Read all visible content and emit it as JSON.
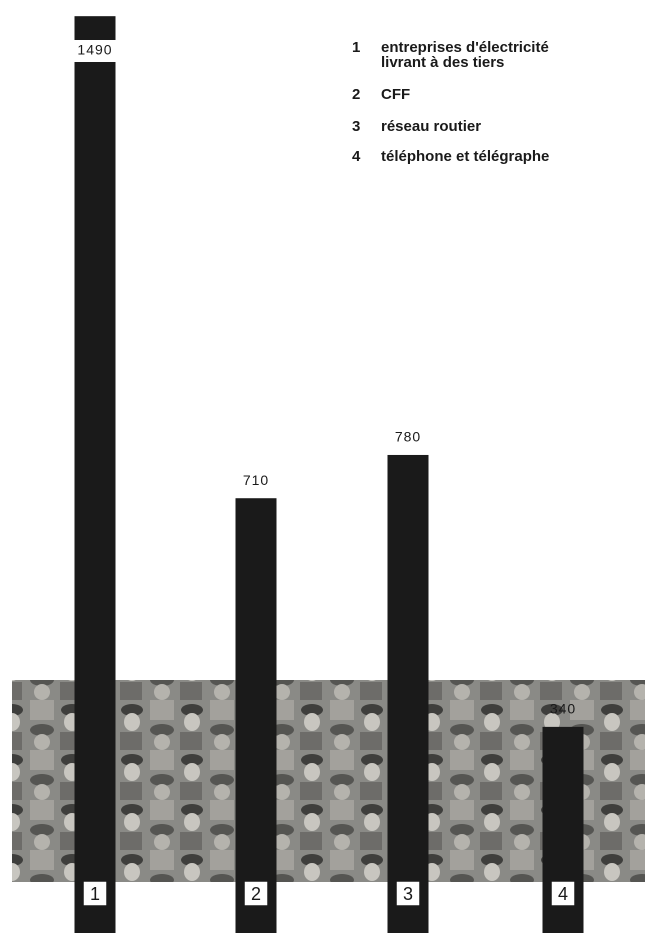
{
  "chart_data": {
    "type": "bar",
    "categories": [
      "1",
      "2",
      "3",
      "4"
    ],
    "descriptions": [
      "entreprises d'électricité livrant à des tiers",
      "CFF",
      "réseau routier",
      "téléphone et télégraphe"
    ],
    "values": [
      1490,
      710,
      780,
      340
    ],
    "color": "#1a1a1a",
    "ylim": [
      0,
      1500
    ]
  }
}
